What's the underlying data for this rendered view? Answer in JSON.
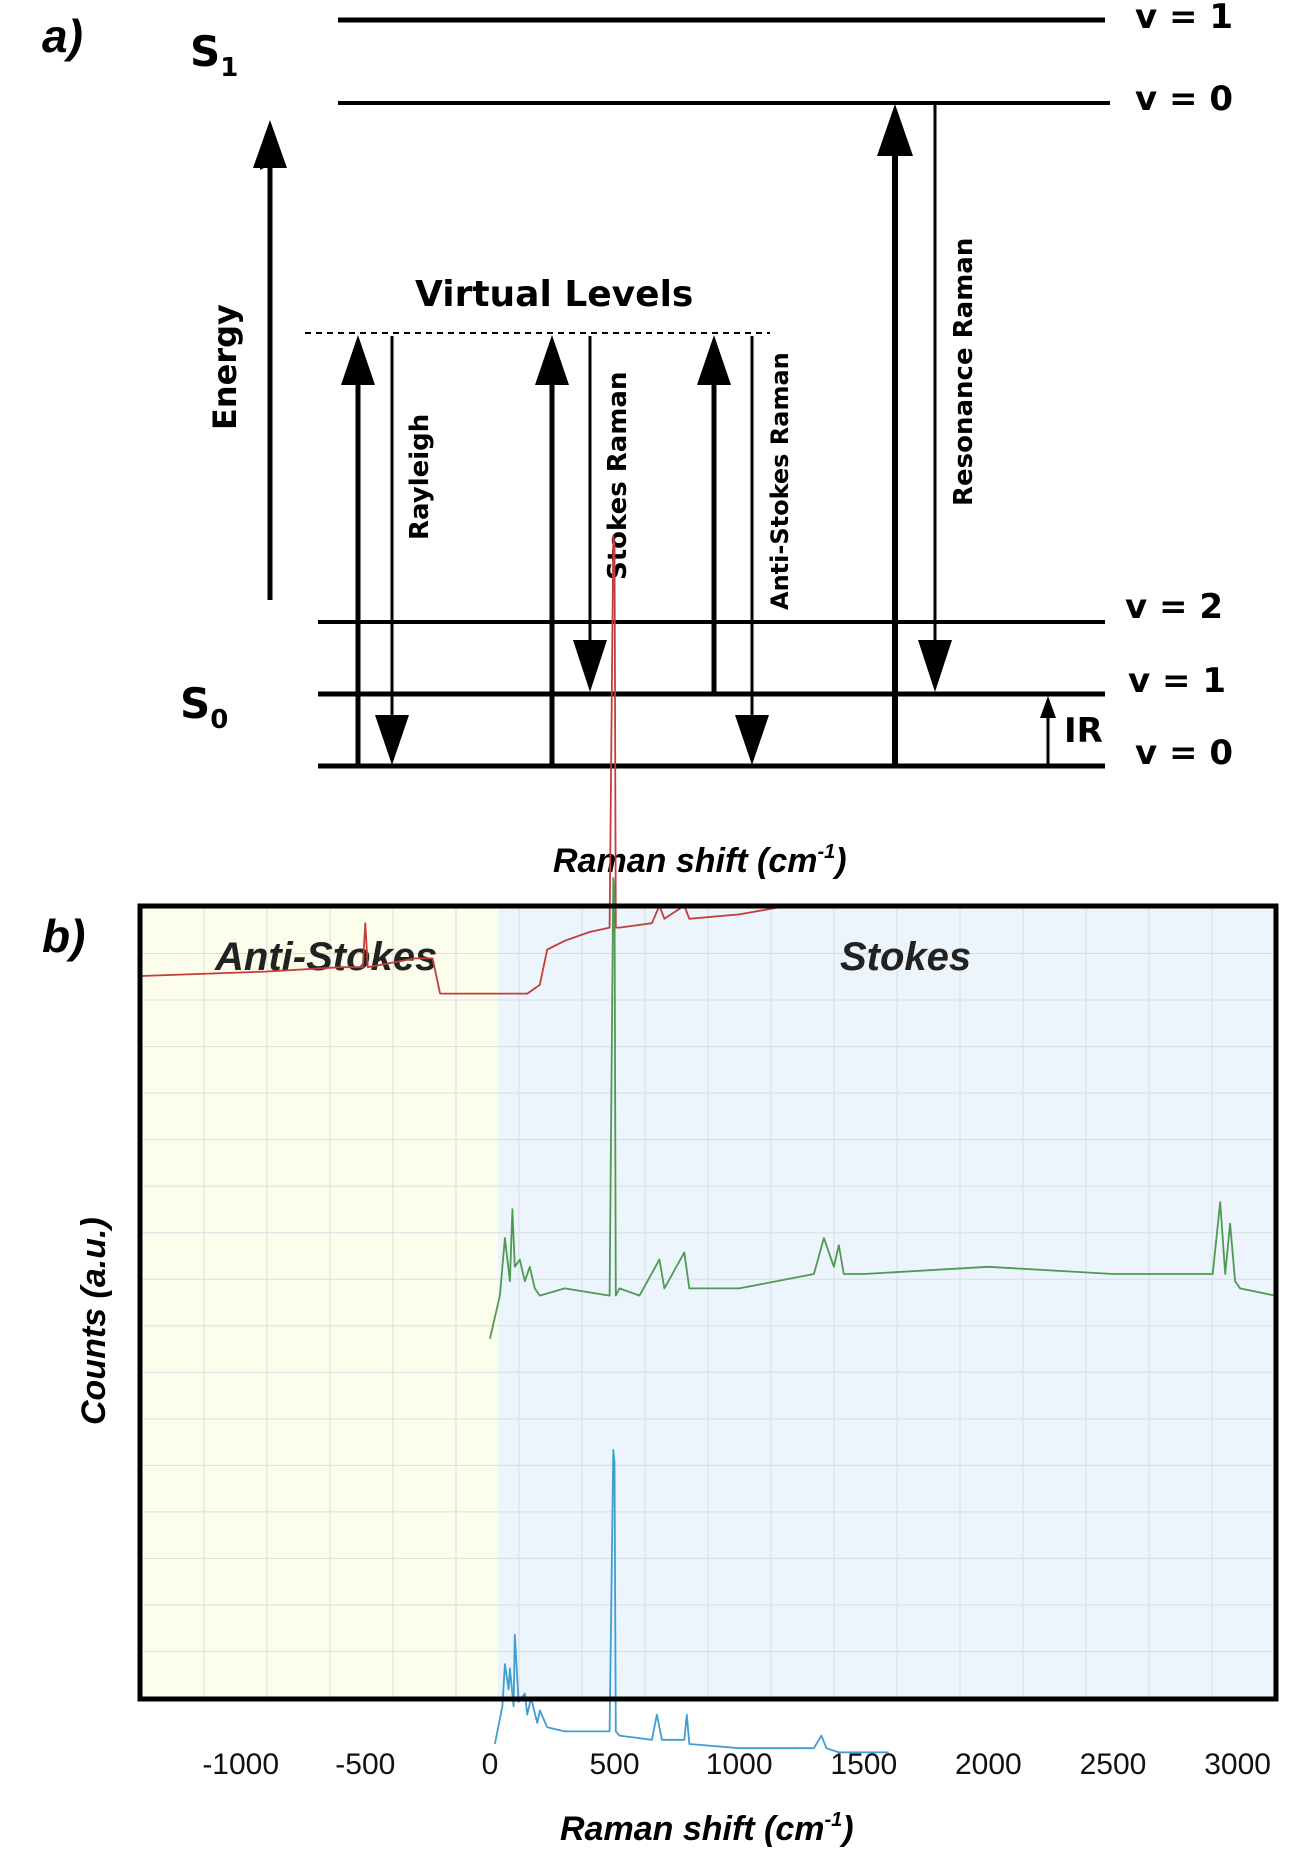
{
  "panel_a": {
    "label": "a)",
    "state_upper": {
      "letter": "S",
      "sub": "1"
    },
    "state_lower": {
      "letter": "S",
      "sub": "0"
    },
    "upper_levels": [
      "v = 1",
      "v = 0"
    ],
    "lower_levels": [
      "v = 2",
      "v = 1",
      "v = 0"
    ],
    "energy_label": "Energy",
    "virtual_levels_label": "Virtual Levels",
    "process_labels": {
      "rayleigh": "Rayleigh",
      "stokes": "Stokes Raman",
      "anti_stokes": "Anti-Stokes Raman",
      "resonance": "Resonance Raman",
      "ir": "IR"
    },
    "top_axis_label": {
      "main": "Raman shift (cm",
      "sup": "-1",
      "close": ")"
    }
  },
  "panel_b": {
    "label": "b)",
    "region_labels": {
      "anti_stokes": "Anti-Stokes",
      "stokes": "Stokes"
    },
    "colors": {
      "anti_stokes_bg": "#fdfdeb",
      "stokes_bg": "#ecf5fc",
      "red_series": "#c43c3c",
      "green_series": "#4f9a52",
      "blue_series": "#3f9fd0",
      "frame": "#000000",
      "grid": "#d8dde3"
    }
  },
  "chart_data": {
    "type": "line",
    "xlabel": {
      "main": "Raman shift (cm",
      "sup": "-1",
      "close": ")"
    },
    "ylabel": "Counts (a.u.)",
    "xlim": [
      -1400,
      3150
    ],
    "x_ticks": [
      -1000,
      -500,
      0,
      500,
      1000,
      1500,
      2000,
      2500,
      3000
    ],
    "grid": true,
    "series": [
      {
        "color": "#c43c3c",
        "x": [
          -1400,
          -900,
          -600,
          -510,
          -500,
          -490,
          -300,
          -230,
          -200,
          0,
          150,
          200,
          230,
          300,
          400,
          480,
          495,
          500,
          505,
          520,
          650,
          680,
          700,
          780,
          800,
          1000,
          1200
        ],
        "y": [
          0.6,
          0.61,
          0.62,
          0.62,
          0.72,
          0.62,
          0.64,
          0.64,
          0.56,
          0.56,
          0.56,
          0.58,
          0.66,
          0.68,
          0.7,
          0.71,
          1.6,
          1.58,
          0.71,
          0.71,
          0.72,
          0.76,
          0.73,
          0.76,
          0.73,
          0.74,
          0.76
        ]
      },
      {
        "color": "#4f9a52",
        "x": [
          0,
          40,
          60,
          80,
          90,
          100,
          120,
          140,
          160,
          180,
          200,
          300,
          480,
          495,
          500,
          505,
          520,
          600,
          680,
          700,
          780,
          800,
          1000,
          1300,
          1340,
          1380,
          1400,
          1420,
          1500,
          2000,
          2500,
          2900,
          2930,
          2950,
          2970,
          2990,
          3010,
          3150
        ],
        "y": [
          0.46,
          0.52,
          0.6,
          0.54,
          0.64,
          0.56,
          0.57,
          0.54,
          0.56,
          0.53,
          0.52,
          0.53,
          0.52,
          1.1,
          1.08,
          0.52,
          0.53,
          0.52,
          0.57,
          0.53,
          0.58,
          0.53,
          0.53,
          0.55,
          0.6,
          0.56,
          0.59,
          0.55,
          0.55,
          0.56,
          0.55,
          0.55,
          0.65,
          0.55,
          0.62,
          0.54,
          0.53,
          0.52
        ]
      },
      {
        "color": "#3f9fd0",
        "x": [
          20,
          50,
          60,
          75,
          80,
          95,
          100,
          115,
          140,
          150,
          165,
          190,
          200,
          230,
          300,
          480,
          495,
          500,
          505,
          520,
          650,
          670,
          690,
          780,
          790,
          800,
          1000,
          1300,
          1330,
          1350,
          1400,
          1600
        ],
        "y": [
          0.05,
          0.14,
          0.24,
          0.18,
          0.23,
          0.14,
          0.31,
          0.15,
          0.17,
          0.12,
          0.16,
          0.1,
          0.13,
          0.09,
          0.08,
          0.08,
          0.75,
          0.72,
          0.08,
          0.07,
          0.06,
          0.12,
          0.06,
          0.06,
          0.12,
          0.05,
          0.04,
          0.04,
          0.07,
          0.04,
          0.03,
          0.03
        ]
      }
    ]
  }
}
